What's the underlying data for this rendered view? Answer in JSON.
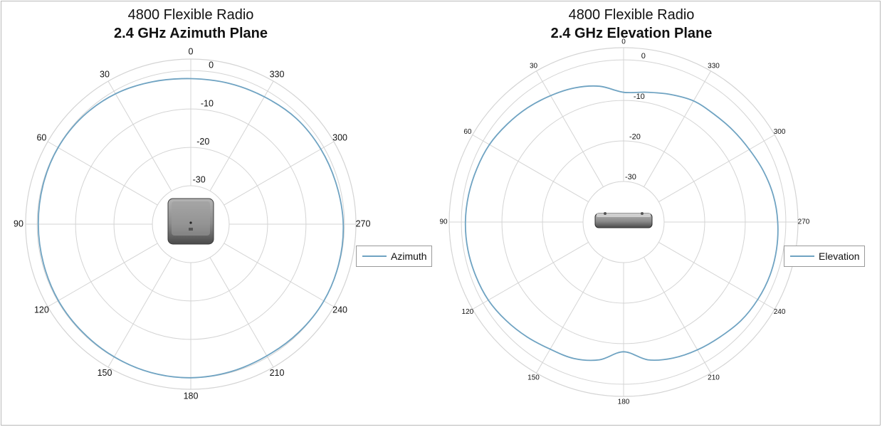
{
  "colors": {
    "series": "#6fa3c2",
    "grid": "#d4d4d4",
    "device": "#7d7d7d"
  },
  "chart_data": [
    {
      "type": "polar-line",
      "title": "4800 Flexible Radio",
      "subtitle": "2.4 GHz Azimuth Plane",
      "angle_ticks": [
        "0",
        "30",
        "60",
        "90",
        "120",
        "150",
        "180",
        "210",
        "240",
        "270",
        "300",
        "330"
      ],
      "radial_ticks": [
        "0",
        "-10",
        "-20",
        "-30"
      ],
      "r_range": [
        -40,
        3
      ],
      "grid": true,
      "legend_position": "right",
      "series": [
        {
          "name": "Azimuth",
          "theta_deg": [
            0,
            15,
            30,
            45,
            60,
            75,
            90,
            105,
            120,
            135,
            150,
            165,
            180,
            195,
            210,
            225,
            240,
            255,
            270,
            285,
            300,
            315,
            330,
            345
          ],
          "r_db": [
            -2.1,
            -1.6,
            -0.8,
            -0.3,
            -0.1,
            -0.2,
            -0.3,
            -0.3,
            -0.2,
            -0.2,
            -0.1,
            0,
            0,
            -0.2,
            -0.4,
            -0.2,
            0,
            -0.1,
            -0.3,
            -0.7,
            -0.9,
            -1.1,
            -1.7,
            -2.0
          ]
        }
      ]
    },
    {
      "type": "polar-line",
      "title": "4800 Flexible Radio",
      "subtitle": "2.4 GHz Elevation Plane",
      "angle_ticks": [
        "0",
        "30",
        "60",
        "90",
        "120",
        "150",
        "180",
        "210",
        "240",
        "270",
        "300",
        "330"
      ],
      "radial_ticks": [
        "0",
        "-10",
        "-20",
        "-30"
      ],
      "r_range": [
        -40,
        3
      ],
      "grid": true,
      "legend_position": "right",
      "series": [
        {
          "name": "Elevation",
          "theta_deg": [
            0,
            10,
            20,
            30,
            40,
            50,
            60,
            70,
            80,
            90,
            100,
            110,
            120,
            130,
            140,
            150,
            160,
            170,
            180,
            190,
            200,
            210,
            220,
            230,
            240,
            250,
            260,
            270,
            280,
            290,
            300,
            310,
            320,
            330,
            340,
            350
          ],
          "r_db": [
            -8.0,
            -6.0,
            -4.8,
            -4.0,
            -3.2,
            -2.5,
            -1.8,
            -1.5,
            -1.2,
            -1.0,
            -1.0,
            -1.2,
            -1.5,
            -2.2,
            -3.0,
            -3.8,
            -4.2,
            -5.5,
            -8.0,
            -5.5,
            -4.3,
            -3.6,
            -3.0,
            -2.2,
            -1.8,
            -1.6,
            -1.7,
            -2.0,
            -2.5,
            -3.3,
            -4.2,
            -4.8,
            -5.3,
            -5.5,
            -6.5,
            -7.5
          ]
        }
      ]
    }
  ]
}
